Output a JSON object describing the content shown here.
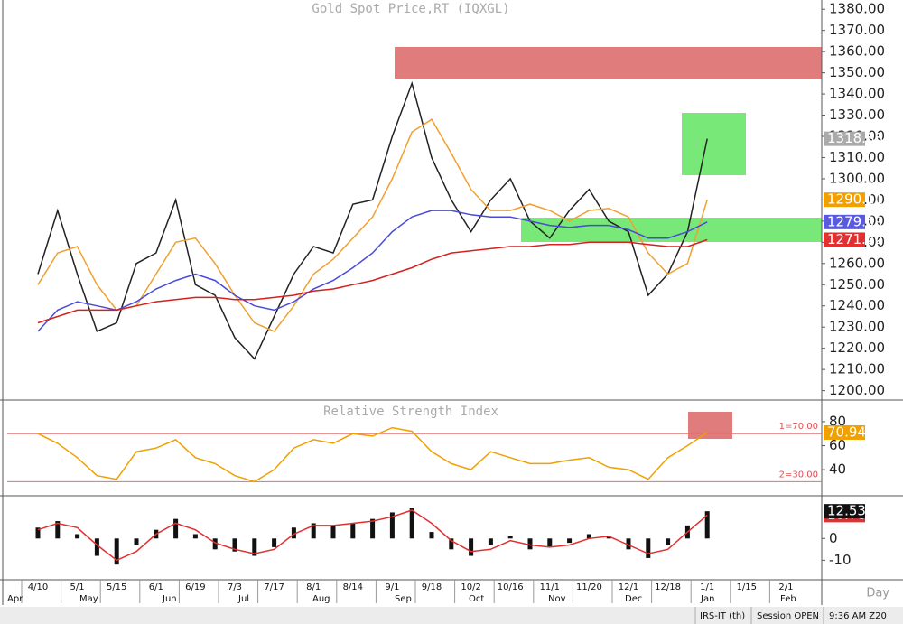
{
  "chart_data": [
    {
      "type": "line",
      "title": "Gold Spot Price,RT (IQXGL)",
      "series": [
        {
          "color": "#222222",
          "values": [
            1255,
            1285,
            1255,
            1228,
            1232,
            1260,
            1265,
            1290,
            1250,
            1245,
            1225,
            1215,
            1235,
            1255,
            1268,
            1265,
            1288,
            1290,
            1320,
            1345,
            1310,
            1290,
            1275,
            1290,
            1300,
            1280,
            1272,
            1285,
            1295,
            1280,
            1275,
            1245,
            1255,
            1275,
            1318.88,
            null,
            null,
            null,
            null
          ]
        },
        {
          "color": "#f0a030",
          "values": [
            1250,
            1265,
            1268,
            1250,
            1238,
            1240,
            1255,
            1270,
            1272,
            1260,
            1245,
            1232,
            1228,
            1240,
            1255,
            1262,
            1272,
            1282,
            1300,
            1322,
            1328,
            1312,
            1295,
            1285,
            1285,
            1288,
            1285,
            1280,
            1285,
            1286,
            1282,
            1265,
            1255,
            1260,
            1290.11,
            null,
            null,
            null,
            null
          ]
        },
        {
          "color": "#4a4ad8",
          "values": [
            1228,
            1238,
            1242,
            1240,
            1238,
            1242,
            1248,
            1252,
            1255,
            1252,
            1245,
            1240,
            1238,
            1242,
            1248,
            1252,
            1258,
            1265,
            1275,
            1282,
            1285,
            1285,
            1283,
            1282,
            1282,
            1280,
            1278,
            1277,
            1278,
            1278,
            1276,
            1272,
            1272,
            1275,
            1279.59,
            null,
            null,
            null,
            null
          ]
        },
        {
          "color": "#d42020",
          "values": [
            1232,
            1235,
            1238,
            1238,
            1238,
            1240,
            1242,
            1243,
            1244,
            1244,
            1243,
            1243,
            1244,
            1245,
            1247,
            1248,
            1250,
            1252,
            1255,
            1258,
            1262,
            1265,
            1266,
            1267,
            1268,
            1268,
            1269,
            1269,
            1270,
            1270,
            1270,
            1269,
            1268,
            1268,
            1271.22,
            null,
            null,
            null,
            null
          ]
        }
      ],
      "ylim": [
        1196,
        1383.5
      ],
      "yticks": [
        {
          "value": 1200,
          "label": "1200.00"
        },
        {
          "value": 1210,
          "label": "1210.00"
        },
        {
          "value": 1220,
          "label": "1220.00"
        },
        {
          "value": 1230,
          "label": "1230.00"
        },
        {
          "value": 1240,
          "label": "1240.00"
        },
        {
          "value": 1250,
          "label": "1250.00"
        },
        {
          "value": 1260,
          "label": "1260.00"
        },
        {
          "value": 1270,
          "label": "1270.00"
        },
        {
          "value": 1280,
          "label": "1280.00"
        },
        {
          "value": 1290,
          "label": "1290.00"
        },
        {
          "value": 1300,
          "label": "1300.00"
        },
        {
          "value": 1310,
          "label": "1310.00"
        },
        {
          "value": 1320,
          "label": "1320.00"
        },
        {
          "value": 1330,
          "label": "1330.00"
        },
        {
          "value": 1340,
          "label": "1340.00"
        },
        {
          "value": 1350,
          "label": "1350.00"
        },
        {
          "value": 1360,
          "label": "1360.00"
        },
        {
          "value": 1370,
          "label": "1370.00"
        },
        {
          "value": 1380,
          "label": "1380.00"
        }
      ]
    },
    {
      "type": "line",
      "title": "Relative Strength Index",
      "series": [
        {
          "color": "#f0a000",
          "values": [
            70,
            62,
            50,
            35,
            32,
            55,
            58,
            65,
            50,
            45,
            35,
            30,
            40,
            58,
            65,
            62,
            70,
            68,
            75,
            72,
            55,
            45,
            40,
            55,
            50,
            45,
            45,
            48,
            50,
            42,
            40,
            32,
            50,
            60,
            70.94,
            null,
            null,
            null,
            null
          ]
        }
      ],
      "levels": [
        {
          "value": 70,
          "label": "1=70.00"
        },
        {
          "value": 30,
          "label": "2=30.00"
        }
      ],
      "ylim": [
        19,
        95
      ],
      "yticks": [
        40,
        60,
        80
      ]
    },
    {
      "type": "bar",
      "color": "#111111",
      "values": [
        5,
        8,
        2,
        -8,
        -12,
        -3,
        4,
        9,
        2,
        -5,
        -6,
        -8,
        -4,
        5,
        7,
        6,
        7,
        9,
        12,
        14,
        3,
        -5,
        -8,
        -3,
        1,
        -5,
        -4,
        -2,
        2,
        1,
        -5,
        -9,
        -3,
        6,
        12.53,
        null,
        null,
        null,
        null
      ],
      "series": [
        {
          "color": "#e03030",
          "values": [
            4,
            7,
            5,
            -3,
            -10,
            -6,
            2,
            7,
            4,
            -2,
            -5,
            -7,
            -5,
            2,
            6,
            6,
            7,
            8,
            10,
            13,
            7,
            -1,
            -6,
            -5,
            -1,
            -3,
            -4,
            -3,
            0,
            1,
            -3,
            -7,
            -5,
            3,
            10.78,
            null,
            null,
            null,
            null
          ]
        }
      ],
      "ylim": [
        -19,
        18
      ],
      "yticks": [
        0,
        -10
      ],
      "categories": [
        "4/10",
        null,
        "5/1",
        null,
        "5/15",
        null,
        "6/1",
        null,
        "6/19",
        null,
        "7/3",
        null,
        "7/17",
        null,
        "8/1",
        null,
        "8/14",
        null,
        "9/1",
        null,
        "9/18",
        null,
        "10/2",
        null,
        "10/16",
        null,
        "11/1",
        null,
        "11/20",
        null,
        "12/1",
        null,
        "12/18",
        null,
        "1/1",
        null,
        "1/15",
        null,
        "2/1"
      ],
      "months": [
        "Apr",
        "May",
        "Jun",
        "Jul",
        "Aug",
        "Sep",
        "Oct",
        "Nov",
        "Dec",
        "Jan",
        "Feb"
      ],
      "xlabel": "Day"
    }
  ],
  "status_bar": {
    "study": "IRS-IT (th)",
    "session": "Session OPEN",
    "time": "9:36 AM Z20"
  }
}
